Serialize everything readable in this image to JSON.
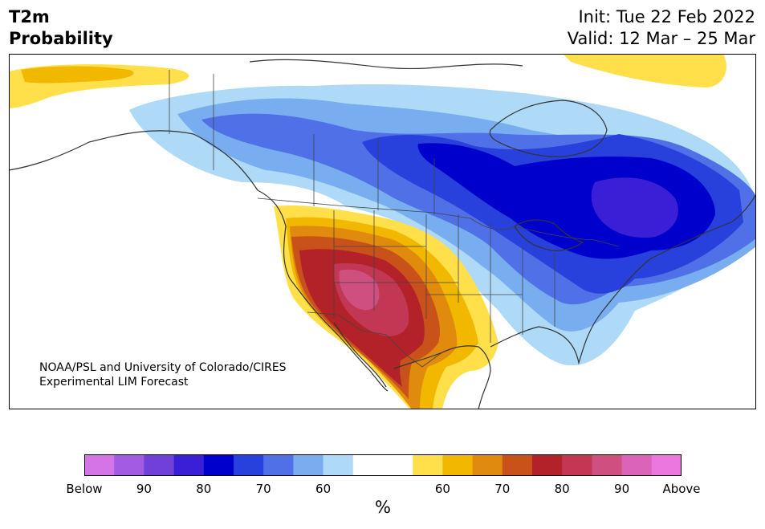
{
  "title": {
    "line1": "T2m",
    "line2": "Probability"
  },
  "dates": {
    "init": "Init: Tue 22 Feb 2022",
    "valid": "Valid: 12 Mar – 25 Mar"
  },
  "credit": {
    "line1": "NOAA/PSL and University of Colorado/CIRES",
    "line2": "Experimental LIM Forecast"
  },
  "colorbar": {
    "unit": "%",
    "colors": [
      "#d474e6",
      "#a25be2",
      "#7040d8",
      "#3a1fd6",
      "#0000cd",
      "#2840dc",
      "#5070e8",
      "#78aef0",
      "#aedaf8",
      "#ffffff",
      "#ffffff",
      "#ffe04a",
      "#f2b800",
      "#e08a0e",
      "#c9521a",
      "#b32228",
      "#c23754",
      "#ce4f80",
      "#dc64b8",
      "#ea78de"
    ],
    "tick_labels": [
      "Below",
      "90",
      "80",
      "70",
      "60",
      "",
      "60",
      "70",
      "80",
      "90",
      "Above"
    ]
  },
  "colors": {
    "below_60": "#aedaf8",
    "below_70": "#78aef0",
    "below_75": "#5070e8",
    "below_80": "#2840dc",
    "below_85": "#0000cd",
    "below_90": "#3a1fd6",
    "above_55": "#ffe04a",
    "above_60": "#f2b800",
    "above_65": "#e08a0e",
    "above_70": "#c9521a",
    "above_75": "#b32228",
    "above_80": "#c23754",
    "above_85": "#ce4f80"
  }
}
